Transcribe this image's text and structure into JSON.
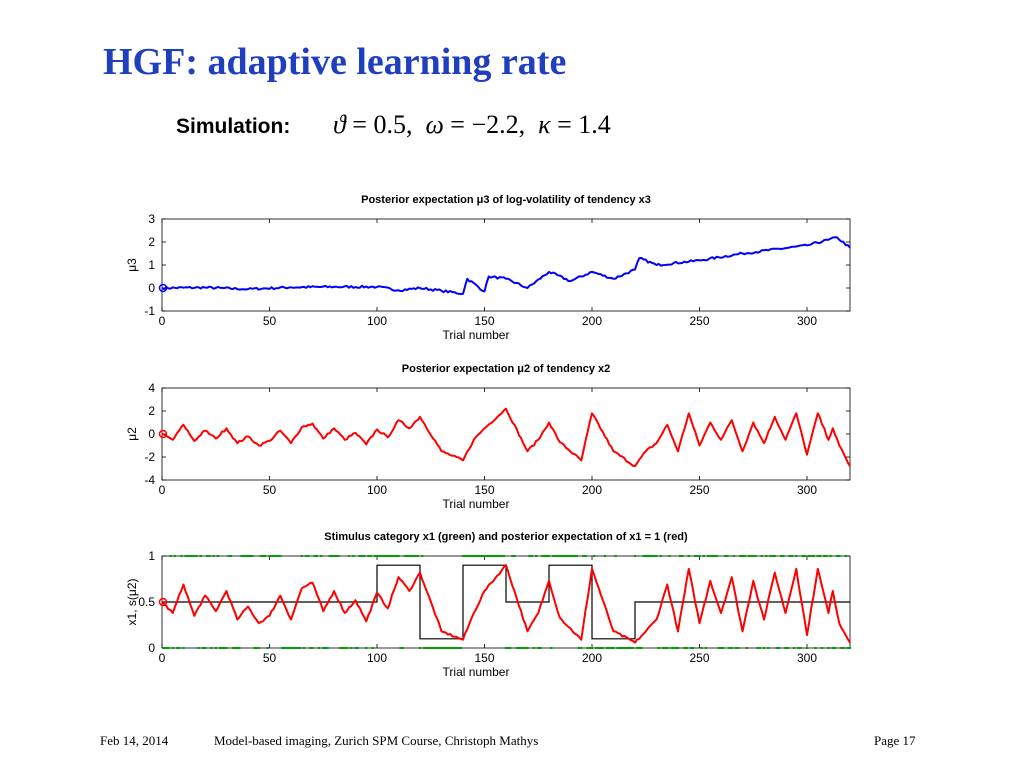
{
  "slide": {
    "title": "HGF: adaptive learning rate",
    "simulation_label": "Simulation:",
    "params": {
      "theta_symbol": "ϑ",
      "theta_value": "0.5",
      "omega_symbol": "ω",
      "omega_value": "−2.2",
      "kappa_symbol": "κ",
      "kappa_value": "1.4"
    }
  },
  "footer": {
    "date": "Feb 14, 2014",
    "course": "Model-based imaging,    Zurich SPM Course,    Christoph Mathys",
    "page": "Page 17"
  },
  "chart_data": [
    {
      "type": "line",
      "title": "Posterior expectation μ3 of log-volatility of tendency x3",
      "xlabel": "Trial number",
      "ylabel": "μ3",
      "xlim": [
        0,
        320
      ],
      "ylim": [
        -1,
        3
      ],
      "xticks": [
        0,
        50,
        100,
        150,
        200,
        250,
        300
      ],
      "yticks": [
        -1,
        0,
        1,
        2,
        3
      ],
      "grid": false,
      "colors": {
        "series": "#0000ff",
        "start_marker": "#0000ff"
      },
      "start_marker": {
        "x": 0,
        "y": 0
      },
      "series": [
        {
          "keypoints": [
            [
              0,
              0
            ],
            [
              20,
              0.02
            ],
            [
              40,
              -0.05
            ],
            [
              60,
              0.03
            ],
            [
              80,
              0.05
            ],
            [
              100,
              0.05
            ],
            [
              110,
              -0.1
            ],
            [
              120,
              0.0
            ],
            [
              130,
              -0.12
            ],
            [
              140,
              -0.25
            ],
            [
              142,
              0.4
            ],
            [
              150,
              -0.15
            ],
            [
              152,
              0.5
            ],
            [
              160,
              0.4
            ],
            [
              170,
              0.0
            ],
            [
              180,
              0.7
            ],
            [
              190,
              0.3
            ],
            [
              200,
              0.7
            ],
            [
              210,
              0.4
            ],
            [
              220,
              0.8
            ],
            [
              222,
              1.3
            ],
            [
              230,
              1.0
            ],
            [
              250,
              1.2
            ],
            [
              270,
              1.5
            ],
            [
              300,
              1.85
            ],
            [
              310,
              2.1
            ],
            [
              314,
              2.2
            ],
            [
              320,
              1.75
            ]
          ]
        }
      ]
    },
    {
      "type": "line",
      "title": "Posterior expectation μ2 of tendency x2",
      "xlabel": "Trial number",
      "ylabel": "μ2",
      "xlim": [
        0,
        320
      ],
      "ylim": [
        -4,
        4
      ],
      "xticks": [
        0,
        50,
        100,
        150,
        200,
        250,
        300
      ],
      "yticks": [
        -4,
        -2,
        0,
        2,
        4
      ],
      "grid": false,
      "colors": {
        "series": "#ff0000",
        "start_marker": "#ff0000"
      },
      "start_marker": {
        "x": 0,
        "y": 0
      },
      "series": [
        {
          "keypoints": [
            [
              0,
              0
            ],
            [
              5,
              -0.5
            ],
            [
              10,
              0.8
            ],
            [
              15,
              -0.6
            ],
            [
              20,
              0.3
            ],
            [
              25,
              -0.4
            ],
            [
              30,
              0.5
            ],
            [
              35,
              -0.8
            ],
            [
              40,
              -0.2
            ],
            [
              45,
              -1.0
            ],
            [
              50,
              -0.6
            ],
            [
              55,
              0.3
            ],
            [
              60,
              -0.8
            ],
            [
              65,
              0.6
            ],
            [
              70,
              0.9
            ],
            [
              75,
              -0.4
            ],
            [
              80,
              0.5
            ],
            [
              85,
              -0.5
            ],
            [
              90,
              0.1
            ],
            [
              95,
              -0.9
            ],
            [
              100,
              0.4
            ],
            [
              105,
              -0.3
            ],
            [
              110,
              1.2
            ],
            [
              115,
              0.5
            ],
            [
              120,
              1.5
            ],
            [
              130,
              -1.5
            ],
            [
              140,
              -2.3
            ],
            [
              145,
              -0.5
            ],
            [
              150,
              0.5
            ],
            [
              160,
              2.2
            ],
            [
              170,
              -1.5
            ],
            [
              175,
              -0.5
            ],
            [
              180,
              1.0
            ],
            [
              185,
              -0.7
            ],
            [
              195,
              -2.3
            ],
            [
              200,
              1.8
            ],
            [
              210,
              -1.5
            ],
            [
              220,
              -2.8
            ],
            [
              225,
              -1.5
            ],
            [
              230,
              -0.8
            ],
            [
              235,
              0.8
            ],
            [
              240,
              -1.5
            ],
            [
              245,
              1.8
            ],
            [
              250,
              -1.0
            ],
            [
              255,
              1.0
            ],
            [
              260,
              -0.5
            ],
            [
              265,
              1.2
            ],
            [
              270,
              -1.5
            ],
            [
              275,
              1.0
            ],
            [
              280,
              -0.8
            ],
            [
              285,
              1.5
            ],
            [
              290,
              -0.5
            ],
            [
              295,
              1.8
            ],
            [
              300,
              -1.8
            ],
            [
              305,
              1.8
            ],
            [
              310,
              -0.5
            ],
            [
              312,
              0.5
            ],
            [
              315,
              -1.0
            ],
            [
              320,
              -2.8
            ]
          ]
        }
      ]
    },
    {
      "type": "line",
      "title": "Stimulus category x1 (green) and posterior expectation of x1 = 1 (red)",
      "xlabel": "Trial number",
      "ylabel": "x1, s(μ2)",
      "xlim": [
        0,
        320
      ],
      "ylim": [
        0,
        1
      ],
      "xticks": [
        0,
        50,
        100,
        150,
        200,
        250,
        300
      ],
      "yticks": [
        0,
        0.5,
        1
      ],
      "grid": false,
      "colors": {
        "posterior": "#ff0000",
        "true_probability": "#000000",
        "stimuli": "#00a000",
        "start_marker": "#ff0000"
      },
      "start_marker": {
        "x": 0,
        "y": 0.5
      },
      "true_probability": [
        [
          0,
          0.5
        ],
        [
          100,
          0.5
        ],
        [
          100,
          0.9
        ],
        [
          120,
          0.9
        ],
        [
          120,
          0.1
        ],
        [
          140,
          0.1
        ],
        [
          140,
          0.9
        ],
        [
          160,
          0.9
        ],
        [
          160,
          0.5
        ],
        [
          180,
          0.5
        ],
        [
          180,
          0.9
        ],
        [
          200,
          0.9
        ],
        [
          200,
          0.1
        ],
        [
          220,
          0.1
        ],
        [
          220,
          0.5
        ],
        [
          320,
          0.5
        ]
      ],
      "series": [
        {
          "keypoints": [
            [
              0,
              0.5
            ],
            [
              5,
              0.38
            ],
            [
              10,
              0.69
            ],
            [
              15,
              0.35
            ],
            [
              20,
              0.57
            ],
            [
              25,
              0.4
            ],
            [
              30,
              0.62
            ],
            [
              35,
              0.31
            ],
            [
              40,
              0.45
            ],
            [
              45,
              0.27
            ],
            [
              50,
              0.35
            ],
            [
              55,
              0.57
            ],
            [
              60,
              0.31
            ],
            [
              65,
              0.65
            ],
            [
              70,
              0.71
            ],
            [
              75,
              0.4
            ],
            [
              80,
              0.62
            ],
            [
              85,
              0.38
            ],
            [
              90,
              0.52
            ],
            [
              95,
              0.29
            ],
            [
              100,
              0.6
            ],
            [
              105,
              0.43
            ],
            [
              110,
              0.77
            ],
            [
              115,
              0.62
            ],
            [
              120,
              0.82
            ],
            [
              130,
              0.18
            ],
            [
              140,
              0.09
            ],
            [
              145,
              0.38
            ],
            [
              150,
              0.62
            ],
            [
              160,
              0.9
            ],
            [
              170,
              0.18
            ],
            [
              175,
              0.38
            ],
            [
              180,
              0.73
            ],
            [
              185,
              0.33
            ],
            [
              195,
              0.09
            ],
            [
              200,
              0.86
            ],
            [
              210,
              0.18
            ],
            [
              220,
              0.06
            ],
            [
              225,
              0.18
            ],
            [
              230,
              0.31
            ],
            [
              235,
              0.69
            ],
            [
              240,
              0.18
            ],
            [
              245,
              0.86
            ],
            [
              250,
              0.27
            ],
            [
              255,
              0.73
            ],
            [
              260,
              0.38
            ],
            [
              265,
              0.77
            ],
            [
              270,
              0.18
            ],
            [
              275,
              0.73
            ],
            [
              280,
              0.31
            ],
            [
              285,
              0.82
            ],
            [
              290,
              0.38
            ],
            [
              295,
              0.86
            ],
            [
              300,
              0.14
            ],
            [
              305,
              0.86
            ],
            [
              310,
              0.38
            ],
            [
              312,
              0.62
            ],
            [
              315,
              0.27
            ],
            [
              320,
              0.06
            ]
          ]
        }
      ]
    }
  ]
}
